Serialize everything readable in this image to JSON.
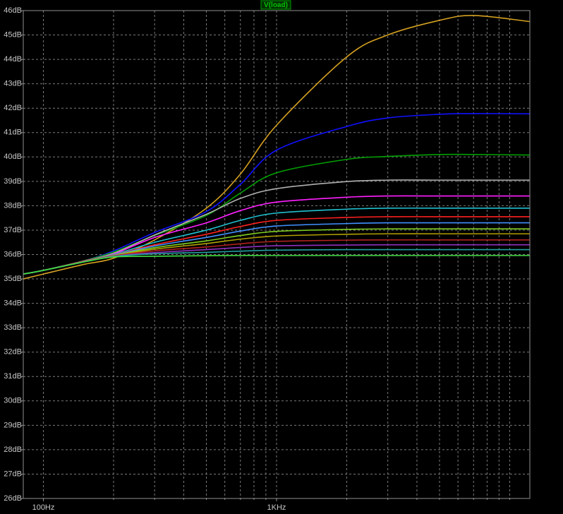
{
  "chart_data": {
    "type": "line",
    "title": "V(load)",
    "title_color": "#00c000",
    "xscale": "log",
    "xlim": [
      82,
      12200
    ],
    "ylim": [
      26,
      46
    ],
    "xticks": [
      {
        "value": 100,
        "label": "100Hz"
      },
      {
        "value": 1000,
        "label": "1KHz"
      }
    ],
    "xminor": [
      200,
      300,
      400,
      500,
      600,
      700,
      800,
      900,
      2000,
      3000,
      4000,
      5000,
      6000,
      7000,
      8000,
      9000,
      10000
    ],
    "yticks": [
      {
        "value": 26,
        "label": "26dB"
      },
      {
        "value": 27,
        "label": "27dB"
      },
      {
        "value": 28,
        "label": "28dB"
      },
      {
        "value": 29,
        "label": "29dB"
      },
      {
        "value": 30,
        "label": "30dB"
      },
      {
        "value": 31,
        "label": "31dB"
      },
      {
        "value": 32,
        "label": "32dB"
      },
      {
        "value": 33,
        "label": "33dB"
      },
      {
        "value": 34,
        "label": "34dB"
      },
      {
        "value": 35,
        "label": "35dB"
      },
      {
        "value": 36,
        "label": "36dB"
      },
      {
        "value": 37,
        "label": "37dB"
      },
      {
        "value": 38,
        "label": "38dB"
      },
      {
        "value": 39,
        "label": "39dB"
      },
      {
        "value": 40,
        "label": "40dB"
      },
      {
        "value": 41,
        "label": "41dB"
      },
      {
        "value": 42,
        "label": "42dB"
      },
      {
        "value": 43,
        "label": "43dB"
      },
      {
        "value": 44,
        "label": "44dB"
      },
      {
        "value": 45,
        "label": "45dB"
      },
      {
        "value": 46,
        "label": "46dB"
      }
    ],
    "grid": true,
    "x": [
      82,
      100,
      150,
      200,
      300,
      500,
      700,
      1000,
      2000,
      3000,
      5000,
      7000,
      12200
    ],
    "series": [
      {
        "color": "#d4a020",
        "values": [
          35.0,
          35.2,
          35.6,
          35.85,
          36.6,
          37.9,
          39.3,
          41.3,
          44.1,
          45.0,
          45.6,
          45.8,
          45.55
        ]
      },
      {
        "color": "#1010ff",
        "values": [
          35.2,
          35.35,
          35.75,
          36.15,
          36.9,
          37.76,
          38.88,
          40.28,
          41.25,
          41.6,
          41.75,
          41.78,
          41.77
        ]
      },
      {
        "color": "#00a000",
        "values": [
          35.2,
          35.35,
          35.75,
          36.1,
          36.78,
          37.6,
          38.52,
          39.35,
          39.9,
          40.02,
          40.1,
          40.1,
          40.08
        ]
      },
      {
        "color": "#b0b0b0",
        "values": [
          35.2,
          35.35,
          35.74,
          36.05,
          36.8,
          37.65,
          38.3,
          38.7,
          38.99,
          39.05,
          39.05,
          39.05,
          39.05
        ]
      },
      {
        "color": "#ff20ff",
        "values": [
          35.2,
          35.35,
          35.74,
          36.02,
          36.7,
          37.3,
          37.8,
          38.15,
          38.35,
          38.4,
          38.4,
          38.4,
          38.4
        ]
      },
      {
        "color": "#20c0d0",
        "values": [
          35.2,
          35.35,
          35.73,
          36.0,
          36.5,
          37.0,
          37.4,
          37.7,
          37.86,
          37.9,
          37.9,
          37.9,
          37.9
        ]
      },
      {
        "color": "#ff2020",
        "values": [
          35.2,
          35.35,
          35.73,
          35.98,
          36.4,
          36.83,
          37.15,
          37.4,
          37.52,
          37.55,
          37.55,
          37.55,
          37.55
        ]
      },
      {
        "color": "#4090ff",
        "values": [
          35.2,
          35.35,
          35.72,
          35.97,
          36.35,
          36.7,
          36.96,
          37.17,
          37.27,
          37.3,
          37.3,
          37.3,
          37.3
        ]
      },
      {
        "color": "#80d020",
        "values": [
          35.2,
          35.35,
          35.72,
          35.96,
          36.28,
          36.56,
          36.78,
          36.95,
          37.03,
          37.05,
          37.05,
          37.05,
          37.05
        ]
      },
      {
        "color": "#b0a000",
        "values": [
          35.2,
          35.35,
          35.72,
          35.95,
          36.22,
          36.45,
          36.63,
          36.76,
          36.83,
          36.85,
          36.85,
          36.85,
          36.85
        ]
      },
      {
        "color": "#b02020",
        "values": [
          35.2,
          35.35,
          35.71,
          35.94,
          36.15,
          36.31,
          36.44,
          36.54,
          36.59,
          36.6,
          36.6,
          36.6,
          36.6
        ]
      },
      {
        "color": "#9030c0",
        "values": [
          35.2,
          35.35,
          35.71,
          35.93,
          36.08,
          36.2,
          36.29,
          36.36,
          36.39,
          36.4,
          36.4,
          36.4,
          36.4
        ]
      },
      {
        "color": "#20a0a0",
        "values": [
          35.2,
          35.35,
          35.7,
          35.92,
          36.03,
          36.09,
          36.14,
          36.18,
          36.2,
          36.2,
          36.2,
          36.2,
          36.2
        ]
      },
      {
        "color": "#40e040",
        "values": [
          35.2,
          35.35,
          35.7,
          35.9,
          35.93,
          35.95,
          35.96,
          35.96,
          35.96,
          35.96,
          35.96,
          35.96,
          35.96
        ]
      }
    ]
  }
}
